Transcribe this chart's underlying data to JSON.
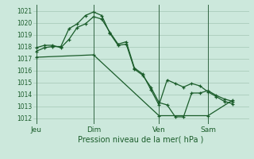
{
  "title": "",
  "xlabel": "Pression niveau de la mer( hPa )",
  "bg_color": "#cce8dc",
  "grid_color_h": "#aaccbb",
  "grid_color_v": "#336644",
  "line_color": "#1a5c2a",
  "ylim": [
    1011.5,
    1021.5
  ],
  "yticks": [
    1012,
    1013,
    1014,
    1015,
    1016,
    1017,
    1018,
    1019,
    1020,
    1021
  ],
  "day_labels": [
    "Jeu",
    "Dim",
    "Ven",
    "Sam"
  ],
  "day_positions": [
    0.0,
    3.5,
    7.5,
    10.5
  ],
  "xlim": [
    -0.2,
    13.0
  ],
  "series1_x": [
    0.0,
    0.5,
    1.0,
    1.5,
    2.0,
    2.5,
    3.0,
    3.5,
    4.0,
    4.5,
    5.0,
    5.5,
    6.0,
    6.5,
    7.0,
    7.5,
    8.0,
    8.5,
    9.0,
    9.5,
    10.0,
    10.5,
    11.0,
    11.5,
    12.0
  ],
  "series1_y": [
    1017.6,
    1017.9,
    1018.0,
    1018.0,
    1019.5,
    1019.9,
    1020.6,
    1020.9,
    1020.6,
    1019.1,
    1018.1,
    1018.2,
    1016.1,
    1015.6,
    1014.6,
    1013.3,
    1013.1,
    1012.1,
    1012.1,
    1014.1,
    1014.1,
    1014.3,
    1013.9,
    1013.6,
    1013.4
  ],
  "series2_x": [
    0.0,
    0.5,
    1.0,
    1.5,
    2.0,
    2.5,
    3.0,
    3.5,
    4.0,
    4.5,
    5.0,
    5.5,
    6.0,
    6.5,
    7.0,
    7.5,
    8.0,
    8.5,
    9.0,
    9.5,
    10.0,
    10.5,
    11.0,
    11.5,
    12.0
  ],
  "series2_y": [
    1017.9,
    1018.1,
    1018.1,
    1017.9,
    1018.6,
    1019.6,
    1019.9,
    1020.5,
    1020.3,
    1019.2,
    1018.2,
    1018.4,
    1016.2,
    1015.7,
    1014.4,
    1013.1,
    1015.2,
    1014.9,
    1014.6,
    1014.9,
    1014.7,
    1014.2,
    1013.8,
    1013.4,
    1013.2
  ],
  "series3_x": [
    0.0,
    3.5,
    7.5,
    10.5,
    12.0
  ],
  "series3_y": [
    1017.1,
    1017.3,
    1012.2,
    1012.2,
    1013.5
  ]
}
